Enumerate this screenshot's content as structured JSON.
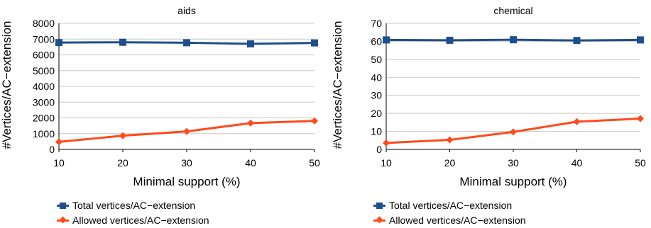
{
  "chart_data": [
    {
      "type": "line",
      "title": "aids",
      "xlabel": "Minimal support (%)",
      "ylabel": "#Vertices/AC−extension",
      "x": [
        10,
        20,
        30,
        40,
        50
      ],
      "xlim": [
        10,
        50
      ],
      "ylim": [
        0,
        8000
      ],
      "yticks": [
        0,
        1000,
        2000,
        3000,
        4000,
        5000,
        6000,
        7000,
        8000
      ],
      "grid": true,
      "legend_position": "bottom",
      "series": [
        {
          "name": "Total vertices/AC−extension",
          "color": "#1f4e8c",
          "marker": "square",
          "values": [
            6780,
            6800,
            6770,
            6700,
            6760
          ]
        },
        {
          "name": "Allowed vertices/AC−extension",
          "color": "#ff4a1c",
          "marker": "diamond",
          "values": [
            480,
            870,
            1140,
            1670,
            1810
          ]
        }
      ]
    },
    {
      "type": "line",
      "title": "chemical",
      "xlabel": "Minimal support (%)",
      "ylabel": "#Vertices/AC−extension",
      "x": [
        10,
        20,
        30,
        40,
        50
      ],
      "xlim": [
        10,
        50
      ],
      "ylim": [
        0,
        70
      ],
      "yticks": [
        0,
        10,
        20,
        30,
        40,
        50,
        60,
        70
      ],
      "grid": true,
      "legend_position": "bottom",
      "series": [
        {
          "name": "Total vertices/AC−extension",
          "color": "#1f4e8c",
          "marker": "square",
          "values": [
            60.8,
            60.6,
            60.9,
            60.5,
            60.8
          ]
        },
        {
          "name": "Allowed vertices/AC−extension",
          "color": "#ff4a1c",
          "marker": "diamond",
          "values": [
            3.6,
            5.3,
            9.7,
            15.4,
            17.1
          ]
        }
      ]
    }
  ]
}
